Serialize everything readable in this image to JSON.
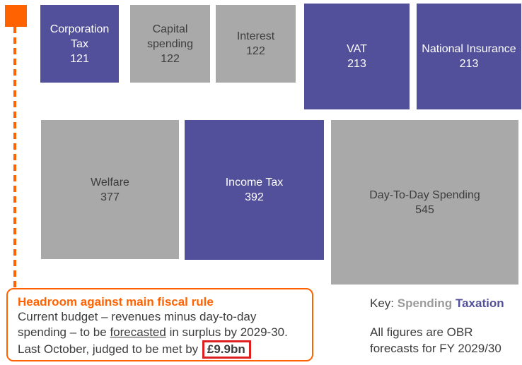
{
  "colors": {
    "taxation_purple": "#524f9b",
    "spending_gray": "#a9a9a9",
    "accent_orange": "#ff6200",
    "highlight_red_border": "#dd1f1f",
    "text_dark": "#3d3d3d"
  },
  "chart_data": {
    "type": "treemap",
    "title": "",
    "legend_position": "bottom-right",
    "legend": [
      {
        "name": "Spending",
        "color": "#a9a9a9"
      },
      {
        "name": "Taxation",
        "color": "#524f9b"
      }
    ],
    "note": "All figures are OBR forecasts for FY 2029/30",
    "boxes": [
      {
        "label": "Corporation Tax",
        "value": 121,
        "category": "Taxation"
      },
      {
        "label": "Capital spending",
        "value": 122,
        "category": "Spending"
      },
      {
        "label": "Interest",
        "value": 122,
        "category": "Spending"
      },
      {
        "label": "VAT",
        "value": 213,
        "category": "Taxation"
      },
      {
        "label": "National Insurance",
        "value": 213,
        "category": "Taxation"
      },
      {
        "label": "Welfare",
        "value": 377,
        "category": "Spending"
      },
      {
        "label": "Income Tax",
        "value": 392,
        "category": "Taxation"
      },
      {
        "label": "Day-To-Day Spending",
        "value": 545,
        "category": "Spending"
      }
    ]
  },
  "callout": {
    "title": "Headroom against main fiscal rule",
    "body_part1": "Current budget – revenues minus day-to-day spending – to be ",
    "body_underlined": "forecasted",
    "body_part2": " in surplus by 2029-30. Last October, judged to be met by ",
    "body_highlight": "£9.9bn"
  },
  "key": {
    "label": "Key:",
    "spending": "Spending",
    "taxation": "Taxation"
  },
  "note": "All figures are OBR forecasts for FY 2029/30"
}
